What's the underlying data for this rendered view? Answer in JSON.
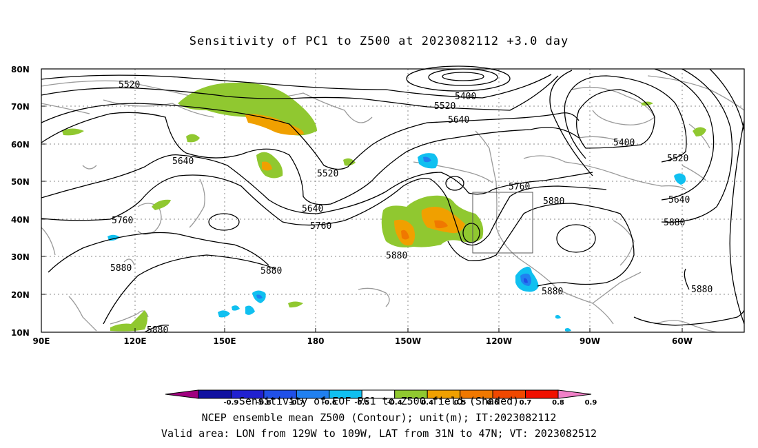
{
  "title": "Sensitivity of PC1 to Z500 at 2023082112 +3.0 day",
  "lat_labels": [
    "80N",
    "70N",
    "60N",
    "50N",
    "40N",
    "30N",
    "20N",
    "10N"
  ],
  "lon_labels": [
    "90E",
    "120E",
    "150E",
    "180",
    "150W",
    "120W",
    "90W",
    "60W"
  ],
  "contour_labels": [
    "5520",
    "5400",
    "5520",
    "5640",
    "5400",
    "5520",
    "5640",
    "5520",
    "5640",
    "5760",
    "5880",
    "5640",
    "5760",
    "5760",
    "5880",
    "5880",
    "5880",
    "5880",
    "5880",
    "5880",
    "5880"
  ],
  "colorbar": {
    "colors": [
      "#a0007f",
      "#1010a0",
      "#2020d0",
      "#2050e8",
      "#2080f0",
      "#10c0f0",
      "#ffffff",
      "#90c830",
      "#f0a000",
      "#f07800",
      "#f04800",
      "#f01000",
      "#f080c8"
    ],
    "labels": [
      "-0.9",
      "-0.8",
      "-0.7",
      "-0.6",
      "-0.5",
      "-0.4",
      "0.4",
      "0.5",
      "0.6",
      "0.7",
      "0.8",
      "0.9"
    ]
  },
  "footer": {
    "line1": "Sensitivity of EOF PC1 to Z500 field (Shaded)",
    "line2": "NCEP ensemble mean Z500 (Contour); unit(m); IT:2023082112",
    "line3": "Valid area: LON from 129W to 109W, LAT from 31N to 47N; VT: 2023082512"
  },
  "colors": {
    "land": "#9a9a9a",
    "contour": "#000000",
    "grid": "#888888"
  }
}
